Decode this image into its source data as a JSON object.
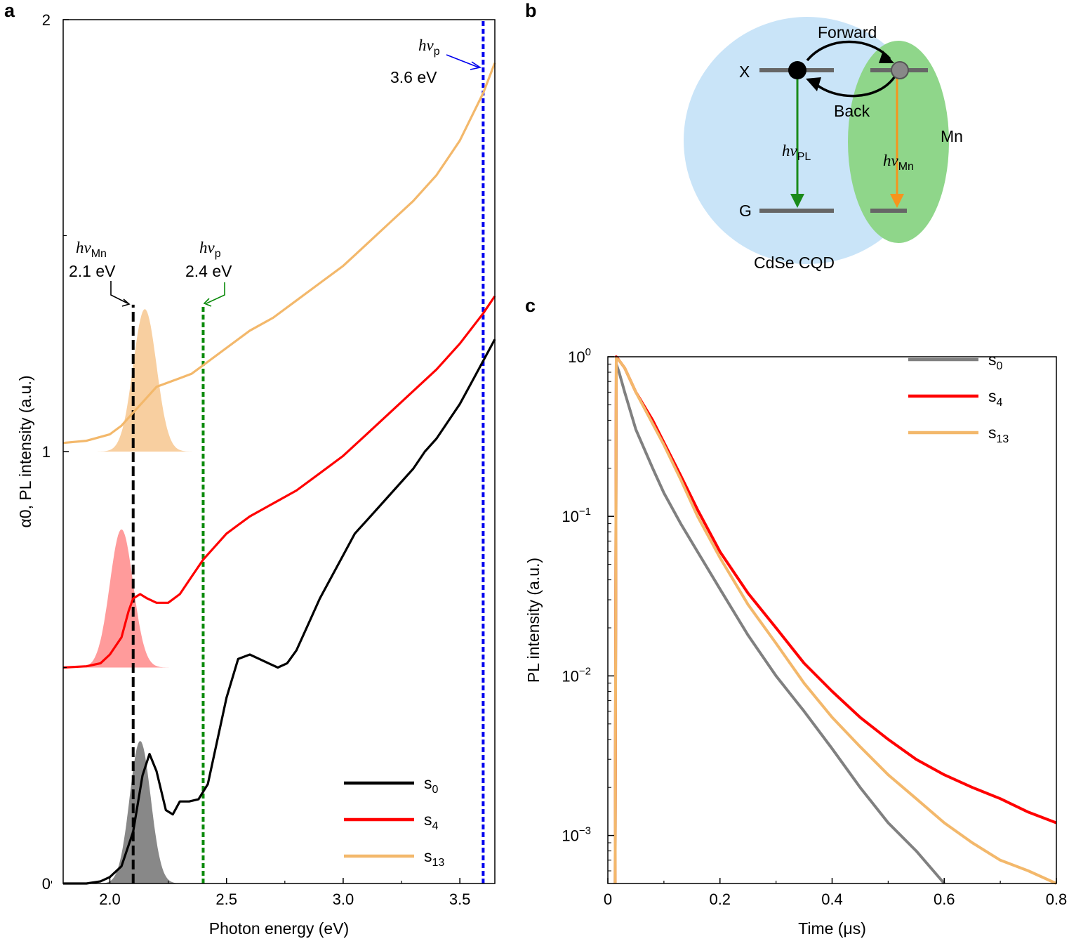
{
  "panels": {
    "a": "a",
    "b": "b",
    "c": "c"
  },
  "chart_data": [
    {
      "panel": "a",
      "type": "line",
      "xlabel": "Photon energy (eV)",
      "ylabel": "α0, PL intensity (a.u.)",
      "xlim": [
        1.8,
        3.65
      ],
      "ylim": [
        0,
        2
      ],
      "xticks": [
        "2.0",
        "2.5",
        "3.0",
        "3.5"
      ],
      "yticks": [
        "0",
        "1",
        "2"
      ],
      "legend_position": "bottom-right",
      "series": [
        {
          "name": "s0",
          "color": "#000000",
          "offset": 0.0,
          "x": [
            1.8,
            1.9,
            1.96,
            2.0,
            2.05,
            2.1,
            2.14,
            2.17,
            2.2,
            2.24,
            2.27,
            2.3,
            2.34,
            2.38,
            2.42,
            2.46,
            2.5,
            2.55,
            2.6,
            2.64,
            2.68,
            2.72,
            2.76,
            2.8,
            2.85,
            2.9,
            2.95,
            3.0,
            3.05,
            3.1,
            3.15,
            3.2,
            3.25,
            3.3,
            3.35,
            3.4,
            3.45,
            3.5,
            3.55,
            3.6,
            3.65
          ],
          "y": [
            0.0,
            0.0,
            0.005,
            0.015,
            0.04,
            0.12,
            0.25,
            0.3,
            0.26,
            0.17,
            0.16,
            0.19,
            0.19,
            0.195,
            0.23,
            0.33,
            0.43,
            0.52,
            0.53,
            0.52,
            0.51,
            0.5,
            0.51,
            0.54,
            0.6,
            0.66,
            0.71,
            0.76,
            0.81,
            0.84,
            0.87,
            0.9,
            0.93,
            0.96,
            1.0,
            1.03,
            1.07,
            1.11,
            1.16,
            1.21,
            1.26
          ]
        },
        {
          "name": "s4",
          "color": "#ff0000",
          "offset": 0.5,
          "x": [
            1.8,
            1.9,
            1.96,
            2.0,
            2.05,
            2.08,
            2.1,
            2.13,
            2.16,
            2.2,
            2.25,
            2.3,
            2.35,
            2.4,
            2.45,
            2.5,
            2.55,
            2.6,
            2.7,
            2.8,
            2.9,
            3.0,
            3.1,
            3.2,
            3.3,
            3.4,
            3.5,
            3.6,
            3.65
          ],
          "y": [
            0.0,
            0.003,
            0.01,
            0.03,
            0.07,
            0.13,
            0.16,
            0.17,
            0.16,
            0.15,
            0.15,
            0.17,
            0.21,
            0.25,
            0.28,
            0.31,
            0.33,
            0.35,
            0.38,
            0.41,
            0.45,
            0.49,
            0.54,
            0.59,
            0.64,
            0.69,
            0.75,
            0.82,
            0.86
          ]
        },
        {
          "name": "s13",
          "color": "#f3b86b",
          "offset": 1.0,
          "x": [
            1.8,
            1.9,
            2.0,
            2.05,
            2.1,
            2.15,
            2.2,
            2.25,
            2.3,
            2.35,
            2.4,
            2.5,
            2.6,
            2.7,
            2.8,
            2.9,
            3.0,
            3.1,
            3.2,
            3.3,
            3.4,
            3.5,
            3.6,
            3.65
          ],
          "y": [
            0.02,
            0.025,
            0.04,
            0.06,
            0.09,
            0.12,
            0.15,
            0.16,
            0.17,
            0.18,
            0.2,
            0.24,
            0.28,
            0.31,
            0.35,
            0.39,
            0.43,
            0.48,
            0.53,
            0.58,
            0.64,
            0.72,
            0.83,
            0.9
          ]
        }
      ],
      "pl_peaks": [
        {
          "name": "s0 PL",
          "color": "#888888",
          "center": 2.13,
          "width": 0.045,
          "height": 0.33,
          "offset": 0.0
        },
        {
          "name": "s4 PL",
          "color": "#ff9b9b",
          "center": 2.05,
          "width": 0.05,
          "height": 0.32,
          "offset": 0.5
        },
        {
          "name": "s13 PL",
          "color": "#f8cfa0",
          "center": 2.15,
          "width": 0.05,
          "height": 0.33,
          "offset": 1.0
        }
      ],
      "vlines": [
        {
          "x": 2.1,
          "color": "#000000",
          "top": 1.34
        },
        {
          "x": 2.4,
          "color": "#0a8a0a",
          "top": 1.34
        },
        {
          "x": 3.6,
          "color": "#0000ee",
          "top": 2.0
        }
      ],
      "annotations": [
        {
          "sym": "hν",
          "sub": "Mn",
          "value": "2.1 eV"
        },
        {
          "sym": "hν",
          "sub": "p",
          "value": "2.4 eV"
        },
        {
          "sym": "hν",
          "sub": "p",
          "value": "3.6 eV"
        }
      ],
      "legend": [
        {
          "base": "s",
          "sub": "0",
          "color": "#000000"
        },
        {
          "base": "s",
          "sub": "4",
          "color": "#ff0000"
        },
        {
          "base": "s",
          "sub": "13",
          "color": "#f3b86b"
        }
      ]
    },
    {
      "panel": "c",
      "type": "line",
      "xlabel": "Time (μs)",
      "ylabel": "PL intensity (a.u.)",
      "xlim": [
        0,
        0.8
      ],
      "yscale": "log",
      "ylim": [
        0.0005,
        1.0
      ],
      "xticks": [
        "0",
        "0.2",
        "0.4",
        "0.6",
        "0.8"
      ],
      "yticks": [
        {
          "base": "10",
          "exp": "0"
        },
        {
          "base": "10",
          "exp": "−1"
        },
        {
          "base": "10",
          "exp": "−2"
        },
        {
          "base": "10",
          "exp": "−3"
        }
      ],
      "legend_position": "top-right",
      "series": [
        {
          "name": "s0",
          "color": "#808080",
          "x": [
            0.015,
            0.02,
            0.03,
            0.05,
            0.08,
            0.1,
            0.13,
            0.16,
            0.2,
            0.25,
            0.3,
            0.35,
            0.4,
            0.45,
            0.5,
            0.55,
            0.6
          ],
          "y": [
            0.9,
            0.8,
            0.6,
            0.35,
            0.2,
            0.14,
            0.09,
            0.06,
            0.035,
            0.018,
            0.01,
            0.006,
            0.0035,
            0.002,
            0.0012,
            0.0008,
            0.0005
          ]
        },
        {
          "name": "s4",
          "color": "#ff0000",
          "x": [
            0.015,
            0.02,
            0.03,
            0.05,
            0.08,
            0.1,
            0.13,
            0.16,
            0.2,
            0.25,
            0.3,
            0.35,
            0.4,
            0.45,
            0.5,
            0.55,
            0.6,
            0.65,
            0.7,
            0.75,
            0.8
          ],
          "y": [
            1.0,
            0.95,
            0.85,
            0.6,
            0.4,
            0.29,
            0.18,
            0.11,
            0.06,
            0.033,
            0.02,
            0.012,
            0.008,
            0.0055,
            0.004,
            0.003,
            0.0024,
            0.002,
            0.0017,
            0.0014,
            0.0012
          ]
        },
        {
          "name": "s13",
          "color": "#f3b86b",
          "x": [
            0.015,
            0.02,
            0.03,
            0.05,
            0.08,
            0.1,
            0.13,
            0.16,
            0.2,
            0.25,
            0.3,
            0.35,
            0.4,
            0.45,
            0.5,
            0.55,
            0.6,
            0.65,
            0.7,
            0.75,
            0.8
          ],
          "y": [
            0.98,
            0.95,
            0.85,
            0.6,
            0.38,
            0.28,
            0.17,
            0.1,
            0.055,
            0.028,
            0.016,
            0.009,
            0.0055,
            0.0036,
            0.0024,
            0.0017,
            0.0012,
            0.0009,
            0.0007,
            0.0006,
            0.0005
          ]
        }
      ],
      "legend": [
        {
          "base": "s",
          "sub": "0",
          "color": "#808080"
        },
        {
          "base": "s",
          "sub": "4",
          "color": "#ff0000"
        },
        {
          "base": "s",
          "sub": "13",
          "color": "#f3b86b"
        }
      ]
    }
  ],
  "diagram_b": {
    "x_label": "X",
    "g_label": "G",
    "forward_label": "Forward",
    "back_label": "Back",
    "mn_label": "Mn",
    "cqd_label": "CdSe CQD",
    "pl_sym": "hν",
    "pl_sub": "PL",
    "mn_sym": "hν",
    "mn_sub": "Mn",
    "colors": {
      "cqd": "#c9e4f8",
      "mn": "#8fd68a",
      "pl_arrow": "#1a8a1a",
      "mn_arrow": "#f7941d"
    }
  }
}
